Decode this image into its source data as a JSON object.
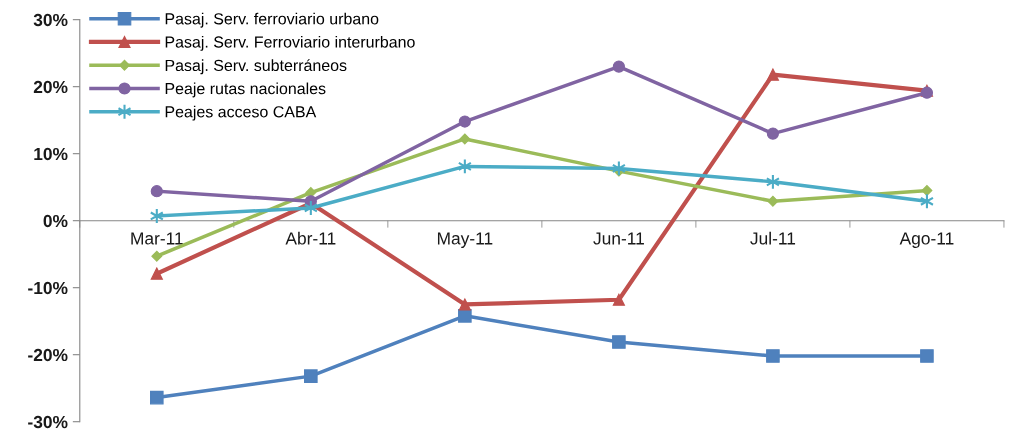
{
  "chart_data": {
    "type": "line",
    "categories": [
      "Mar-11",
      "Abr-11",
      "May-11",
      "Jun-11",
      "Jul-11",
      "Ago-11"
    ],
    "series": [
      {
        "name": "Pasaj. Serv. ferroviario urbano",
        "color": "#4f81bd",
        "marker": "square",
        "values": [
          -26.4,
          -23.2,
          -14.2,
          -18.1,
          -20.2,
          -20.2
        ]
      },
      {
        "name": "Pasaj. Serv. Ferroviario interurbano",
        "color": "#c0504d",
        "marker": "triangle",
        "values": [
          -7.9,
          2.6,
          -12.5,
          -11.8,
          21.8,
          19.4
        ]
      },
      {
        "name": "Pasaj. Serv. subterráneos",
        "color": "#9bbb59",
        "marker": "diamond",
        "values": [
          -5.3,
          4.2,
          12.2,
          7.4,
          2.9,
          4.5
        ]
      },
      {
        "name": "Peaje rutas nacionales",
        "color": "#8064a2",
        "marker": "circle",
        "values": [
          4.4,
          2.9,
          14.8,
          23.0,
          13.0,
          19.1
        ]
      },
      {
        "name": "Peajes acceso CABA",
        "color": "#4bacc6",
        "marker": "cross",
        "values": [
          0.7,
          1.9,
          8.1,
          7.8,
          5.8,
          2.9
        ]
      }
    ],
    "ylim": [
      -30,
      30
    ],
    "yticks": [
      {
        "value": -30,
        "label": "-30%"
      },
      {
        "value": -20,
        "label": "-20%"
      },
      {
        "value": -10,
        "label": "-10%"
      },
      {
        "value": 0,
        "label": "0%"
      },
      {
        "value": 10,
        "label": "10%"
      },
      {
        "value": 20,
        "label": "20%"
      },
      {
        "value": 30,
        "label": "30%"
      }
    ],
    "legend": "top left",
    "line_style": "solid"
  }
}
